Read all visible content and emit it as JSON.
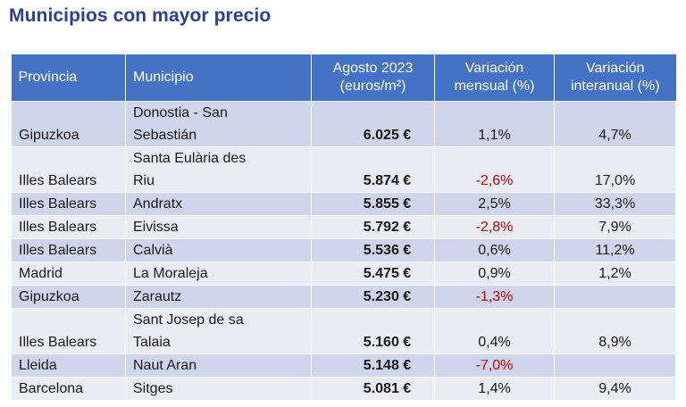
{
  "title": "Municipios con mayor precio",
  "table": {
    "headers": {
      "provincia": "Provincia",
      "municipio": "Municipio",
      "precio_line1": "Agosto 2023",
      "precio_line2": "(euros/m²)",
      "mensual_line1": "Variación",
      "mensual_line2": "mensual (%)",
      "interanual_line1": "Variación",
      "interanual_line2": "interanual (%)"
    },
    "rows": [
      {
        "provincia": "Gipuzkoa",
        "municipio_l1": "Donostia - San",
        "municipio_l2": "Sebastián",
        "precio": "6.025 €",
        "mensual": "1,1%",
        "interanual": "4,7%",
        "neg": false
      },
      {
        "provincia": "Illes Balears",
        "municipio_l1": "Santa Eulària des",
        "municipio_l2": "Riu",
        "precio": "5.874 €",
        "mensual": "-2,6%",
        "interanual": "17,0%",
        "neg": true
      },
      {
        "provincia": "Illes Balears",
        "municipio_l1": "Andratx",
        "municipio_l2": "",
        "precio": "5.855 €",
        "mensual": "2,5%",
        "interanual": "33,3%",
        "neg": false
      },
      {
        "provincia": "Illes Balears",
        "municipio_l1": "Eivissa",
        "municipio_l2": "",
        "precio": "5.792 €",
        "mensual": "-2,8%",
        "interanual": "7,9%",
        "neg": true
      },
      {
        "provincia": "Illes Balears",
        "municipio_l1": "Calvià",
        "municipio_l2": "",
        "precio": "5.536 €",
        "mensual": "0,6%",
        "interanual": "11,2%",
        "neg": false
      },
      {
        "provincia": "Madrid",
        "municipio_l1": "La Moraleja",
        "municipio_l2": "",
        "precio": "5.475 €",
        "mensual": "0,9%",
        "interanual": "1,2%",
        "neg": false
      },
      {
        "provincia": "Gipuzkoa",
        "municipio_l1": "Zarautz",
        "municipio_l2": "",
        "precio": "5.230 €",
        "mensual": "-1,3%",
        "interanual": "",
        "neg": true
      },
      {
        "provincia": "Illes Balears",
        "municipio_l1": "Sant Josep de sa",
        "municipio_l2": "Talaia",
        "precio": "5.160 €",
        "mensual": "0,4%",
        "interanual": "8,9%",
        "neg": false
      },
      {
        "provincia": "Lleida",
        "municipio_l1": "Naut Aran",
        "municipio_l2": "",
        "precio": "5.148 €",
        "mensual": "-7,0%",
        "interanual": "",
        "neg": true
      },
      {
        "provincia": "Barcelona",
        "municipio_l1": "Sitges",
        "municipio_l2": "",
        "precio": "5.081 €",
        "mensual": "1,4%",
        "interanual": "9,4%",
        "neg": false
      }
    ],
    "colors": {
      "header_bg": "#4472c4",
      "row_odd": "#cfd5ea",
      "row_even": "#e9ebf5",
      "negative": "#c00000",
      "title": "#2a3f9a"
    }
  }
}
